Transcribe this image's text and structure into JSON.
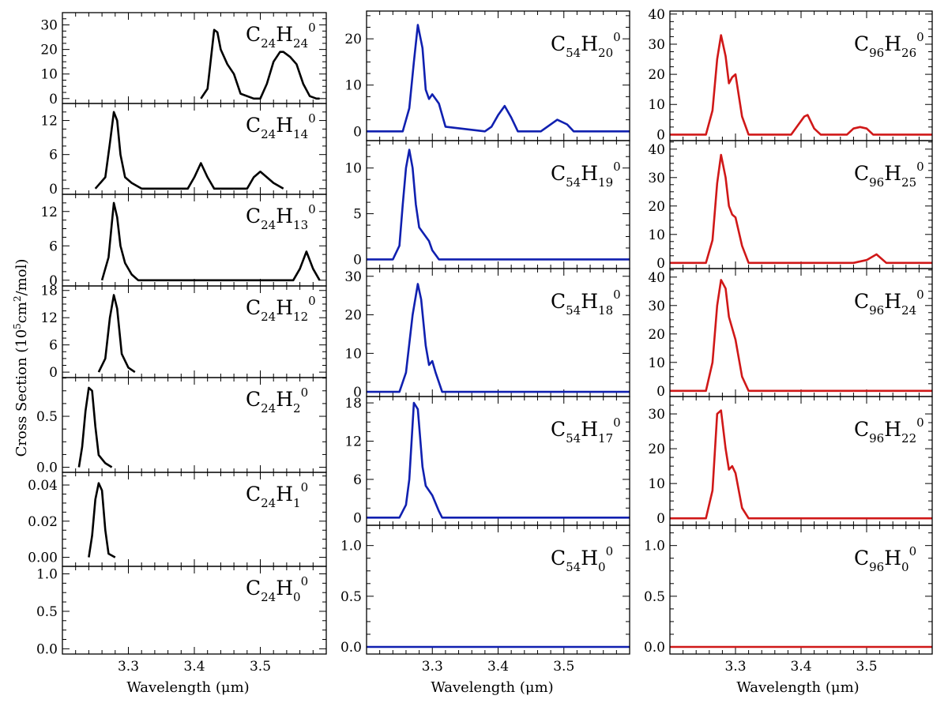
{
  "figure": {
    "ylabel_main": "Cross Section (10",
    "ylabel_exp": "5",
    "ylabel_mid": "cm",
    "ylabel_exp2": "2",
    "ylabel_end": "/mol)",
    "xlabel": "Wavelength (μm)"
  },
  "chart_data": [
    {
      "type": "line",
      "column": 0,
      "row": 0,
      "color": "#000000",
      "label": {
        "c": "C",
        "c_sub": "24",
        "h": "H",
        "h_sub": "24",
        "sup": "0"
      },
      "xlim": [
        3.2,
        3.6
      ],
      "ylim": [
        -2,
        35
      ],
      "xticks": [
        3.3,
        3.4,
        3.5
      ],
      "xtick_labels": [],
      "yticks": [
        0,
        10,
        20,
        30
      ],
      "ytick_labels": [
        "0",
        "10",
        "20",
        "30"
      ],
      "x": [
        3.41,
        3.42,
        3.425,
        3.43,
        3.435,
        3.44,
        3.45,
        3.46,
        3.47,
        3.49,
        3.5,
        3.51,
        3.52,
        3.53,
        3.535,
        3.545,
        3.555,
        3.565,
        3.575,
        3.585,
        3.59
      ],
      "y": [
        0,
        4,
        16,
        28,
        27,
        20,
        14,
        10,
        2,
        0,
        0,
        6,
        15,
        19,
        19,
        17,
        14,
        6,
        1,
        0,
        0
      ]
    },
    {
      "type": "line",
      "column": 0,
      "row": 1,
      "color": "#000000",
      "label": {
        "c": "C",
        "c_sub": "24",
        "h": "H",
        "h_sub": "14",
        "sup": "0"
      },
      "xlim": [
        3.2,
        3.6
      ],
      "ylim": [
        -1,
        15
      ],
      "xticks": [
        3.3,
        3.4,
        3.5
      ],
      "xtick_labels": [],
      "yticks": [
        0,
        6,
        12
      ],
      "ytick_labels": [
        "0",
        "6",
        "12"
      ],
      "x": [
        3.25,
        3.265,
        3.272,
        3.278,
        3.283,
        3.288,
        3.295,
        3.305,
        3.32,
        3.39,
        3.4,
        3.41,
        3.42,
        3.43,
        3.48,
        3.49,
        3.5,
        3.51,
        3.52,
        3.535
      ],
      "y": [
        0,
        2,
        8,
        13.5,
        12,
        6,
        2,
        1,
        0,
        0,
        2,
        4.5,
        2,
        0,
        0,
        2,
        3,
        2,
        1,
        0
      ]
    },
    {
      "type": "line",
      "column": 0,
      "row": 2,
      "color": "#000000",
      "label": {
        "c": "C",
        "c_sub": "24",
        "h": "H",
        "h_sub": "13",
        "sup": "0"
      },
      "xlim": [
        3.2,
        3.6
      ],
      "ylim": [
        -1,
        15
      ],
      "xticks": [
        3.3,
        3.4,
        3.5
      ],
      "xtick_labels": [],
      "yticks": [
        0,
        6,
        12
      ],
      "ytick_labels": [
        "0",
        "6",
        "12"
      ],
      "x": [
        3.26,
        3.27,
        3.275,
        3.278,
        3.283,
        3.288,
        3.295,
        3.305,
        3.315,
        3.55,
        3.56,
        3.57,
        3.58,
        3.59
      ],
      "y": [
        0,
        4,
        10,
        13.5,
        11,
        6,
        3,
        1,
        0,
        0,
        2,
        5,
        2,
        0
      ]
    },
    {
      "type": "line",
      "column": 0,
      "row": 3,
      "color": "#000000",
      "label": {
        "c": "C",
        "c_sub": "24",
        "h": "H",
        "h_sub": "12",
        "sup": "0"
      },
      "xlim": [
        3.2,
        3.6
      ],
      "ylim": [
        -1.2,
        19
      ],
      "xticks": [
        3.3,
        3.4,
        3.5
      ],
      "xtick_labels": [],
      "yticks": [
        0,
        6,
        12,
        18
      ],
      "ytick_labels": [
        "0",
        "6",
        "12",
        "18"
      ],
      "x": [
        3.255,
        3.265,
        3.272,
        3.278,
        3.283,
        3.29,
        3.3,
        3.31
      ],
      "y": [
        0,
        3,
        12,
        17,
        14,
        4,
        1,
        0
      ]
    },
    {
      "type": "line",
      "column": 0,
      "row": 4,
      "color": "#000000",
      "label": {
        "c": "C",
        "c_sub": "24",
        "h": "H",
        "h_sub": "2",
        "sup": "0"
      },
      "xlim": [
        3.2,
        3.6
      ],
      "ylim": [
        -0.05,
        0.88
      ],
      "xticks": [
        3.3,
        3.4,
        3.5
      ],
      "xtick_labels": [],
      "yticks": [
        0.0,
        0.5
      ],
      "ytick_labels": [
        "0.0",
        "0.5"
      ],
      "x": [
        3.225,
        3.23,
        3.235,
        3.24,
        3.245,
        3.25,
        3.255,
        3.265,
        3.275
      ],
      "y": [
        0,
        0.2,
        0.55,
        0.78,
        0.75,
        0.4,
        0.12,
        0.04,
        0
      ]
    },
    {
      "type": "line",
      "column": 0,
      "row": 5,
      "color": "#000000",
      "label": {
        "c": "C",
        "c_sub": "24",
        "h": "H",
        "h_sub": "1",
        "sup": "0"
      },
      "xlim": [
        3.2,
        3.6
      ],
      "ylim": [
        -0.005,
        0.047
      ],
      "xticks": [
        3.3,
        3.4,
        3.5
      ],
      "xtick_labels": [],
      "yticks": [
        0.0,
        0.02,
        0.04
      ],
      "ytick_labels": [
        "0.00",
        "0.02",
        "0.04"
      ],
      "x": [
        3.24,
        3.245,
        3.25,
        3.255,
        3.26,
        3.265,
        3.27,
        3.28
      ],
      "y": [
        0,
        0.012,
        0.032,
        0.041,
        0.037,
        0.015,
        0.002,
        0
      ]
    },
    {
      "type": "line",
      "column": 0,
      "row": 6,
      "color": "#000000",
      "label": {
        "c": "C",
        "c_sub": "24",
        "h": "H",
        "h_sub": "0",
        "sup": "0"
      },
      "xlim": [
        3.2,
        3.6
      ],
      "ylim": [
        -0.07,
        1.1
      ],
      "xticks": [
        3.3,
        3.4,
        3.5
      ],
      "xtick_labels": [
        "3.3",
        "3.4",
        "3.5"
      ],
      "yticks": [
        0.0,
        0.5,
        1.0
      ],
      "ytick_labels": [
        "0.0",
        "0.5",
        "1.0"
      ],
      "x": [],
      "y": []
    },
    {
      "type": "line",
      "column": 1,
      "row": 0,
      "color": "#1020b0",
      "label": {
        "c": "C",
        "c_sub": "54",
        "h": "H",
        "h_sub": "20",
        "sup": "0"
      },
      "xlim": [
        3.2,
        3.6
      ],
      "ylim": [
        -2,
        26
      ],
      "xticks": [
        3.3,
        3.4,
        3.5
      ],
      "xtick_labels": [],
      "yticks": [
        0,
        10,
        20
      ],
      "ytick_labels": [
        "0",
        "10",
        "20"
      ],
      "x": [
        3.2,
        3.255,
        3.265,
        3.272,
        3.278,
        3.285,
        3.29,
        3.295,
        3.3,
        3.31,
        3.32,
        3.38,
        3.39,
        3.4,
        3.41,
        3.42,
        3.43,
        3.465,
        3.475,
        3.49,
        3.505,
        3.515,
        3.6
      ],
      "y": [
        0,
        0,
        5,
        15,
        23,
        18,
        9,
        7,
        8,
        6,
        1,
        0,
        1,
        3.5,
        5.5,
        3,
        0,
        0,
        1,
        2.5,
        1.5,
        0,
        0
      ]
    },
    {
      "type": "line",
      "column": 1,
      "row": 1,
      "color": "#1020b0",
      "label": {
        "c": "C",
        "c_sub": "54",
        "h": "H",
        "h_sub": "19",
        "sup": "0"
      },
      "xlim": [
        3.2,
        3.6
      ],
      "ylim": [
        -1,
        13
      ],
      "xticks": [
        3.3,
        3.4,
        3.5
      ],
      "xtick_labels": [],
      "yticks": [
        0,
        5,
        10
      ],
      "ytick_labels": [
        "0",
        "5",
        "10"
      ],
      "x": [
        3.2,
        3.24,
        3.25,
        3.255,
        3.26,
        3.265,
        3.27,
        3.275,
        3.28,
        3.285,
        3.295,
        3.3,
        3.31,
        3.6
      ],
      "y": [
        0,
        0,
        1.5,
        6,
        10,
        12,
        10,
        6,
        3.5,
        3,
        2,
        1,
        0,
        0
      ]
    },
    {
      "type": "line",
      "column": 1,
      "row": 2,
      "color": "#1020b0",
      "label": {
        "c": "C",
        "c_sub": "54",
        "h": "H",
        "h_sub": "18",
        "sup": "0"
      },
      "xlim": [
        3.2,
        3.6
      ],
      "ylim": [
        -1.2,
        32
      ],
      "xticks": [
        3.3,
        3.4,
        3.5
      ],
      "xtick_labels": [],
      "yticks": [
        0,
        10,
        20,
        30
      ],
      "ytick_labels": [
        "0",
        "10",
        "20",
        "30"
      ],
      "x": [
        3.2,
        3.25,
        3.26,
        3.27,
        3.278,
        3.283,
        3.29,
        3.295,
        3.3,
        3.305,
        3.315,
        3.6
      ],
      "y": [
        0,
        0,
        5,
        20,
        28,
        24,
        12,
        7,
        8,
        5,
        0,
        0
      ]
    },
    {
      "type": "line",
      "column": 1,
      "row": 3,
      "color": "#1020b0",
      "label": {
        "c": "C",
        "c_sub": "54",
        "h": "H",
        "h_sub": "17",
        "sup": "0"
      },
      "xlim": [
        3.2,
        3.6
      ],
      "ylim": [
        -1.2,
        19
      ],
      "xticks": [
        3.3,
        3.4,
        3.5
      ],
      "xtick_labels": [],
      "yticks": [
        0,
        6,
        12,
        18
      ],
      "ytick_labels": [
        "0",
        "6",
        "12",
        "18"
      ],
      "x": [
        3.2,
        3.25,
        3.26,
        3.265,
        3.272,
        3.278,
        3.285,
        3.29,
        3.3,
        3.31,
        3.315,
        3.6
      ],
      "y": [
        0,
        0,
        2,
        6,
        18,
        17,
        8,
        5,
        3.5,
        1,
        0,
        0
      ]
    },
    {
      "type": "line",
      "column": 1,
      "row": 4,
      "color": "#1020b0",
      "label": {
        "c": "C",
        "c_sub": "54",
        "h": "H",
        "h_sub": "0",
        "sup": "0"
      },
      "xlim": [
        3.2,
        3.6
      ],
      "ylim": [
        -0.07,
        1.2
      ],
      "xticks": [
        3.3,
        3.4,
        3.5
      ],
      "xtick_labels": [
        "3.3",
        "3.4",
        "3.5"
      ],
      "yticks": [
        0.0,
        0.5,
        1.0
      ],
      "ytick_labels": [
        "0.0",
        "0.5",
        "1.0"
      ],
      "x": [
        3.2,
        3.6
      ],
      "y": [
        0,
        0
      ]
    },
    {
      "type": "line",
      "column": 2,
      "row": 0,
      "color": "#d01818",
      "label": {
        "c": "C",
        "c_sub": "96",
        "h": "H",
        "h_sub": "26",
        "sup": "0"
      },
      "xlim": [
        3.2,
        3.6
      ],
      "ylim": [
        -2,
        41
      ],
      "xticks": [
        3.3,
        3.4,
        3.5
      ],
      "xtick_labels": [],
      "yticks": [
        0,
        10,
        20,
        30,
        40
      ],
      "ytick_labels": [
        "0",
        "10",
        "20",
        "30",
        "40"
      ],
      "x": [
        3.2,
        3.255,
        3.265,
        3.272,
        3.278,
        3.285,
        3.29,
        3.295,
        3.3,
        3.31,
        3.32,
        3.385,
        3.395,
        3.405,
        3.41,
        3.42,
        3.43,
        3.47,
        3.48,
        3.49,
        3.5,
        3.51,
        3.6
      ],
      "y": [
        0,
        0,
        8,
        25,
        33,
        26,
        17,
        19,
        20,
        6,
        0,
        0,
        3,
        6,
        6.5,
        2,
        0,
        0,
        2,
        2.5,
        2,
        0,
        0
      ]
    },
    {
      "type": "line",
      "column": 2,
      "row": 1,
      "color": "#d01818",
      "label": {
        "c": "C",
        "c_sub": "96",
        "h": "H",
        "h_sub": "25",
        "sup": "0"
      },
      "xlim": [
        3.2,
        3.6
      ],
      "ylim": [
        -2,
        43
      ],
      "xticks": [
        3.3,
        3.4,
        3.5
      ],
      "xtick_labels": [],
      "yticks": [
        0,
        10,
        20,
        30,
        40
      ],
      "ytick_labels": [
        "0",
        "10",
        "20",
        "30",
        "40"
      ],
      "x": [
        3.2,
        3.255,
        3.265,
        3.272,
        3.278,
        3.285,
        3.29,
        3.295,
        3.3,
        3.31,
        3.32,
        3.48,
        3.5,
        3.515,
        3.53,
        3.6
      ],
      "y": [
        0,
        0,
        8,
        28,
        38,
        30,
        20,
        17,
        16,
        6,
        0,
        0,
        1,
        3,
        0,
        0
      ]
    },
    {
      "type": "line",
      "column": 2,
      "row": 2,
      "color": "#d01818",
      "label": {
        "c": "C",
        "c_sub": "96",
        "h": "H",
        "h_sub": "24",
        "sup": "0"
      },
      "xlim": [
        3.2,
        3.6
      ],
      "ylim": [
        -2,
        43
      ],
      "xticks": [
        3.3,
        3.4,
        3.5
      ],
      "xtick_labels": [],
      "yticks": [
        0,
        10,
        20,
        30,
        40
      ],
      "ytick_labels": [
        "0",
        "10",
        "20",
        "30",
        "40"
      ],
      "x": [
        3.2,
        3.255,
        3.265,
        3.272,
        3.278,
        3.285,
        3.29,
        3.3,
        3.31,
        3.32,
        3.6
      ],
      "y": [
        0,
        0,
        10,
        30,
        39,
        36,
        26,
        18,
        5,
        0,
        0
      ]
    },
    {
      "type": "line",
      "column": 2,
      "row": 3,
      "color": "#d01818",
      "label": {
        "c": "C",
        "c_sub": "96",
        "h": "H",
        "h_sub": "22",
        "sup": "0"
      },
      "xlim": [
        3.2,
        3.6
      ],
      "ylim": [
        -2,
        35
      ],
      "xticks": [
        3.3,
        3.4,
        3.5
      ],
      "xtick_labels": [],
      "yticks": [
        0,
        10,
        20,
        30
      ],
      "ytick_labels": [
        "0",
        "10",
        "20",
        "30"
      ],
      "x": [
        3.2,
        3.255,
        3.265,
        3.272,
        3.278,
        3.285,
        3.29,
        3.295,
        3.3,
        3.31,
        3.32,
        3.6
      ],
      "y": [
        0,
        0,
        8,
        30,
        31,
        20,
        14,
        15,
        13,
        3,
        0,
        0
      ]
    },
    {
      "type": "line",
      "column": 2,
      "row": 4,
      "color": "#d01818",
      "label": {
        "c": "C",
        "c_sub": "96",
        "h": "H",
        "h_sub": "0",
        "sup": "0"
      },
      "xlim": [
        3.2,
        3.6
      ],
      "ylim": [
        -0.07,
        1.2
      ],
      "xticks": [
        3.3,
        3.4,
        3.5
      ],
      "xtick_labels": [
        "3.3",
        "3.4",
        "3.5"
      ],
      "yticks": [
        0.0,
        0.5,
        1.0
      ],
      "ytick_labels": [
        "0.0",
        "0.5",
        "1.0"
      ],
      "x": [
        3.2,
        3.6
      ],
      "y": [
        0,
        0
      ]
    }
  ]
}
